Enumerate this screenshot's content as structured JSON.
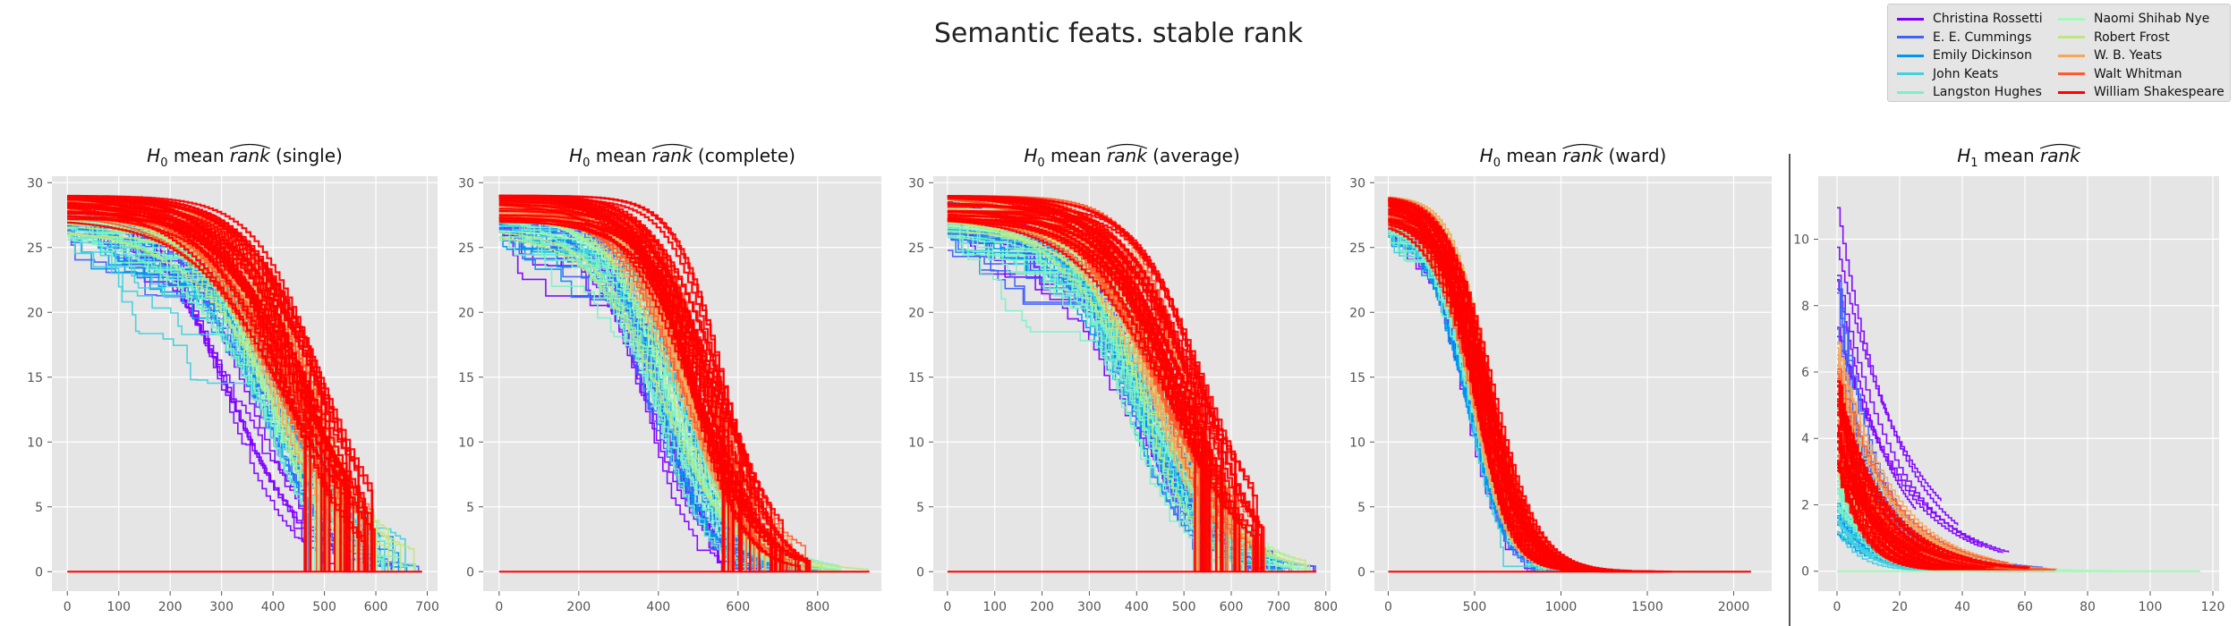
{
  "figure": {
    "title": "Semantic feats. stable rank",
    "separator": true
  },
  "legend": {
    "placement": "top-right",
    "columns": 2,
    "items": [
      {
        "name": "Christina Rossetti",
        "color": "#7f00ff"
      },
      {
        "name": "E. E. Cummings",
        "color": "#3f60fa"
      },
      {
        "name": "Emily Dickinson",
        "color": "#0196ef"
      },
      {
        "name": "John Keats",
        "color": "#40d2de"
      },
      {
        "name": "Langston Hughes",
        "color": "#7df1c6"
      },
      {
        "name": "Naomi Shihab Nye",
        "color": "#a3fab7"
      },
      {
        "name": "Robert Frost",
        "color": "#c0e680"
      },
      {
        "name": "W. B. Yeats",
        "color": "#f6a55b"
      },
      {
        "name": "Walt Whitman",
        "color": "#ff5a2d"
      },
      {
        "name": "William Shakespeare",
        "color": "#ff0000"
      }
    ]
  },
  "chart_data": [
    {
      "type": "line",
      "title_prefix": "H",
      "title_sub": "0",
      "title_mid": " mean ",
      "title_hat": "rank",
      "title_suffix": " (single)",
      "xlim": [
        -30,
        720
      ],
      "ylim": [
        -1.5,
        30.5
      ],
      "xticks": [
        0,
        100,
        200,
        300,
        400,
        500,
        600,
        700
      ],
      "yticks": [
        0,
        5,
        10,
        15,
        20,
        25,
        30
      ],
      "grid": true,
      "xmax_range": [
        460,
        690
      ],
      "y0_range": [
        26,
        29
      ],
      "midpoint_by_author": [
        330,
        390,
        395,
        400,
        385,
        420,
        420,
        440,
        445,
        455
      ],
      "max_x": 690
    },
    {
      "type": "line",
      "title_prefix": "H",
      "title_sub": "0",
      "title_mid": " mean ",
      "title_hat": "rank",
      "title_suffix": " (complete)",
      "xlim": [
        -40,
        960
      ],
      "ylim": [
        -1.5,
        30.5
      ],
      "xticks": [
        0,
        200,
        400,
        600,
        800
      ],
      "yticks": [
        0,
        5,
        10,
        15,
        20,
        25,
        30
      ],
      "grid": true,
      "xmax_range": [
        560,
        930
      ],
      "y0_range": [
        26,
        29
      ],
      "midpoint_by_author": [
        390,
        410,
        420,
        430,
        420,
        450,
        450,
        480,
        500,
        520
      ],
      "max_x": 930
    },
    {
      "type": "line",
      "title_prefix": "H",
      "title_sub": "0",
      "title_mid": " mean ",
      "title_hat": "rank",
      "title_suffix": " (average)",
      "xlim": [
        -30,
        810
      ],
      "ylim": [
        -1.5,
        30.5
      ],
      "xticks": [
        0,
        100,
        200,
        300,
        400,
        500,
        600,
        700,
        800
      ],
      "yticks": [
        0,
        5,
        10,
        15,
        20,
        25,
        30
      ],
      "grid": true,
      "xmax_range": [
        520,
        780
      ],
      "y0_range": [
        26,
        29
      ],
      "midpoint_by_author": [
        380,
        400,
        410,
        415,
        405,
        440,
        440,
        460,
        480,
        500
      ],
      "max_x": 780
    },
    {
      "type": "line",
      "title_prefix": "H",
      "title_sub": "0",
      "title_mid": " mean ",
      "title_hat": "rank",
      "title_suffix": " (ward)",
      "xlim": [
        -80,
        2220
      ],
      "ylim": [
        -1.5,
        30.5
      ],
      "xticks": [
        0,
        500,
        1000,
        1500,
        2000
      ],
      "yticks": [
        0,
        5,
        10,
        15,
        20,
        25,
        30
      ],
      "grid": true,
      "xmax_range": [
        1000,
        2100
      ],
      "y0_range": [
        26,
        29
      ],
      "midpoint_by_author": [
        470,
        480,
        480,
        490,
        500,
        510,
        510,
        520,
        530,
        540
      ],
      "max_x": 2100
    },
    {
      "type": "line",
      "title_prefix": "H",
      "title_sub": "1",
      "title_mid": " mean ",
      "title_hat": "rank",
      "title_suffix": "",
      "xlim": [
        -6,
        122
      ],
      "ylim": [
        -0.6,
        11.9
      ],
      "xticks": [
        0,
        20,
        40,
        60,
        80,
        100,
        120
      ],
      "yticks": [
        0,
        2,
        4,
        6,
        8,
        10
      ],
      "grid": true,
      "y0_by_author": [
        11.3,
        8.4,
        2.0,
        1.8,
        3.0,
        6.0,
        5.0,
        6.6,
        6.0,
        5.5
      ],
      "max_x": 116
    }
  ]
}
